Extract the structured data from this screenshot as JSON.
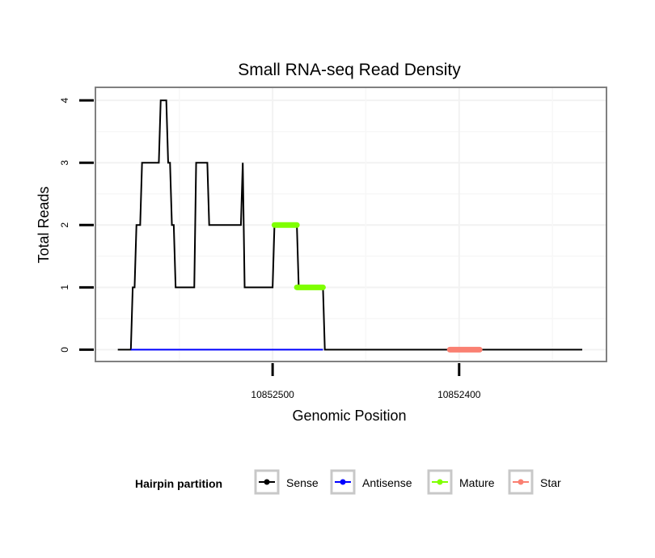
{
  "chart_data": {
    "type": "line",
    "title": "Small RNA-seq Read Density",
    "xlabel": "Genomic Position",
    "ylabel": "Total Reads",
    "xlim": [
      10852595,
      10852321
    ],
    "x_reversed": true,
    "ylim": [
      -0.19,
      4.21
    ],
    "xticks": [
      10852500,
      10852400
    ],
    "xtick_labels": [
      "10852500",
      "10852400"
    ],
    "xminor": [
      10852550,
      10852450,
      10852350
    ],
    "yticks": [
      0,
      1,
      2,
      3,
      4
    ],
    "ytick_labels": [
      "0",
      "1",
      "2",
      "3",
      "4"
    ],
    "grid": true,
    "legend": {
      "title": "Hairpin partition",
      "placement": "bottom",
      "entries": [
        "Sense",
        "Antisense",
        "Mature",
        "Star"
      ]
    },
    "series": [
      {
        "name": "Sense",
        "color": "#000000",
        "points": [
          [
            10852583,
            0
          ],
          [
            10852576,
            0
          ],
          [
            10852575,
            1
          ],
          [
            10852574,
            1
          ],
          [
            10852573,
            2
          ],
          [
            10852571,
            2
          ],
          [
            10852570,
            3
          ],
          [
            10852561,
            3
          ],
          [
            10852560,
            4
          ],
          [
            10852557,
            4
          ],
          [
            10852556,
            3
          ],
          [
            10852555,
            3
          ],
          [
            10852554,
            2
          ],
          [
            10852553,
            2
          ],
          [
            10852552,
            1
          ],
          [
            10852542,
            1
          ],
          [
            10852541,
            3
          ],
          [
            10852535,
            3
          ],
          [
            10852534,
            2
          ],
          [
            10852517,
            2
          ],
          [
            10852516,
            3
          ],
          [
            10852515,
            1
          ],
          [
            10852500,
            1
          ],
          [
            10852499,
            2
          ],
          [
            10852487,
            2
          ],
          [
            10852486,
            1
          ],
          [
            10852473,
            1
          ],
          [
            10852472,
            0
          ],
          [
            10852334,
            0
          ]
        ]
      },
      {
        "name": "Antisense",
        "color": "#0000ff",
        "points": [
          [
            10852576,
            0
          ],
          [
            10852473,
            0
          ]
        ]
      },
      {
        "name": "Mature",
        "color": "#7fff00",
        "points": [
          [
            10852499,
            2
          ],
          [
            10852487,
            2
          ]
        ],
        "points2": [
          [
            10852487,
            1
          ],
          [
            10852473,
            1
          ]
        ]
      },
      {
        "name": "Star",
        "color": "#fa8072",
        "points": [
          [
            10852405,
            0
          ],
          [
            10852389,
            0
          ]
        ]
      }
    ]
  }
}
